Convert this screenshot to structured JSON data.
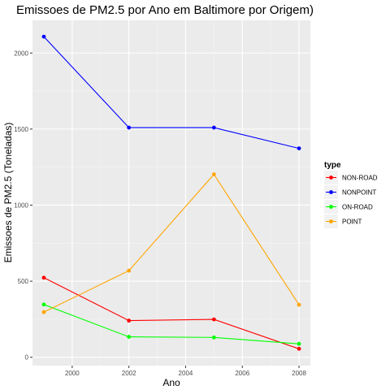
{
  "chart_data": {
    "type": "line",
    "title": "Emissoes de PM2.5 por Ano em Baltimore por Origem)",
    "xlabel": "Ano",
    "ylabel": "Emissoes de PM2.5 (Toneladas)",
    "x": [
      1999,
      2002,
      2005,
      2008
    ],
    "x_ticks": [
      2000,
      2002,
      2004,
      2006,
      2008
    ],
    "y_ticks": [
      0,
      500,
      1000,
      1500,
      2000
    ],
    "xlim": [
      1998.6,
      2008.4
    ],
    "ylim": [
      -55,
      2215
    ],
    "grid": true,
    "legend_title": "type",
    "legend_position": "right",
    "series": [
      {
        "name": "NON-ROAD",
        "color": "#ff0000",
        "values": [
          522.9,
          240.8,
          248.9,
          55.8
        ]
      },
      {
        "name": "NONPOINT",
        "color": "#0000ff",
        "values": [
          2107.6,
          1509.5,
          1509.5,
          1373.2
        ]
      },
      {
        "name": "ON-ROAD",
        "color": "#00ff00",
        "values": [
          346.8,
          134.3,
          130.4,
          88.3
        ]
      },
      {
        "name": "POINT",
        "color": "#ffa500",
        "values": [
          296.8,
          569.3,
          1202.5,
          344.98
        ]
      }
    ]
  }
}
